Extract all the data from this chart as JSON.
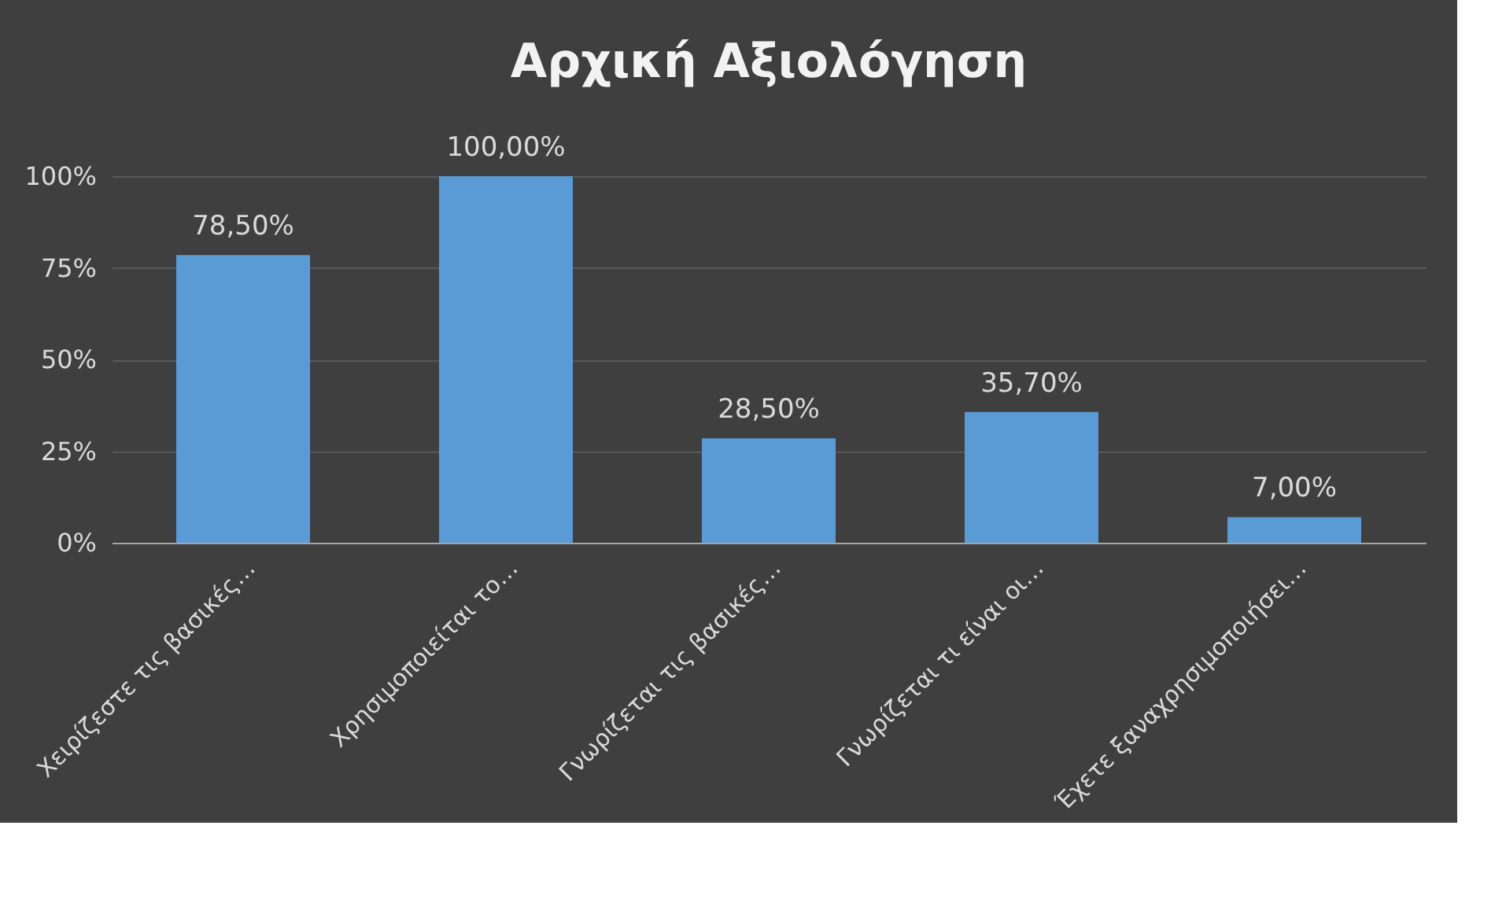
{
  "chart_data": {
    "type": "bar",
    "title": "Αρχική Αξιολόγηση",
    "categories": [
      "Χειρίζεστε τις βασικές…",
      "Χρησιμοποιείται το…",
      "Γνωρίζεται τις βασικές…",
      "Γνωρίζεται τι είναι οι…",
      "Έχετε ξαναχρησιμοποιήσει…"
    ],
    "values": [
      78.5,
      100,
      28.5,
      35.7,
      7
    ],
    "value_labels": [
      "78,50%",
      "100,00%",
      "28,50%",
      "35,70%",
      "7,00%"
    ],
    "color": "#5b9bd5",
    "ylim": [
      0,
      100
    ],
    "yticks": [
      {
        "value": 0,
        "label": "0%"
      },
      {
        "value": 25,
        "label": "25%"
      },
      {
        "value": 50,
        "label": "50%"
      },
      {
        "value": 75,
        "label": "75%"
      },
      {
        "value": 100,
        "label": "100%"
      }
    ],
    "grid": "y"
  }
}
